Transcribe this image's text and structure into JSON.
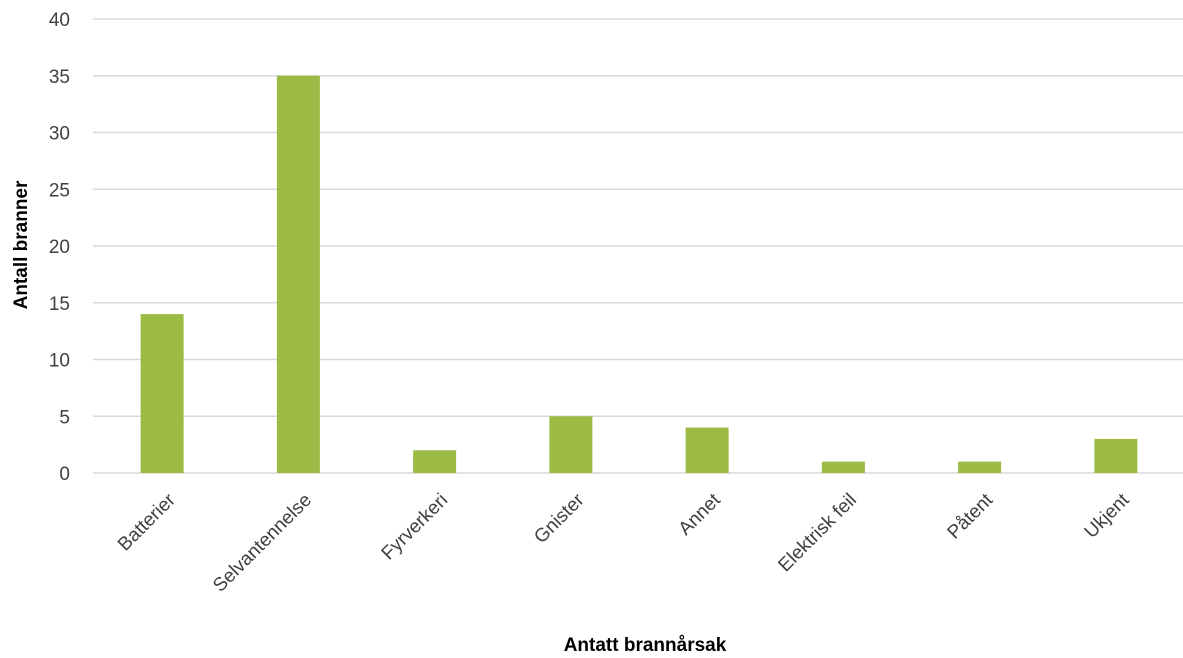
{
  "chart_data": {
    "type": "bar",
    "categories": [
      "Batterier",
      "Selvantennelse",
      "Fyrverkeri",
      "Gnister",
      "Annet",
      "Elektrisk feil",
      "Påtent",
      "Ukjent"
    ],
    "values": [
      14,
      35,
      2,
      5,
      4,
      1,
      1,
      3
    ],
    "xlabel": "Antatt brannårsak",
    "ylabel": "Antall branner",
    "ylim": [
      0,
      40
    ],
    "yticks": [
      "0",
      "5",
      "10",
      "15",
      "20",
      "25",
      "30",
      "35",
      "40"
    ],
    "grid": true,
    "legend": "none",
    "bar_color": "#9bbb45",
    "grid_color": "#d9d9d9"
  }
}
